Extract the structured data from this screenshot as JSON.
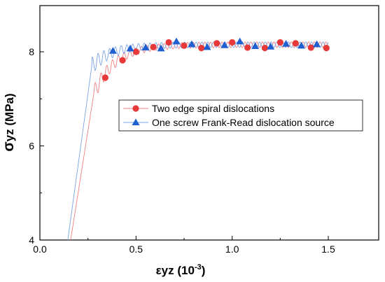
{
  "chart_data": {
    "type": "scatter",
    "xlabel": {
      "symbol": "ε",
      "sub": "yz",
      "unit_prefix": " (10",
      "exp": "-3",
      "unit_suffix": ")"
    },
    "ylabel": {
      "symbol": "σ",
      "sub": "yz",
      "unit": " (MPa)"
    },
    "xlim": [
      0.0,
      1.5
    ],
    "ylim": [
      4,
      9
    ],
    "x_ticks": [
      "0.0",
      "0.5",
      "1.0",
      "1.5"
    ],
    "y_ticks": [
      "4",
      "6",
      "8"
    ],
    "legend_position": "center-right",
    "series": [
      {
        "name": "Two edge spiral dislocations",
        "color": "#e8393a",
        "line_color": "#f08080",
        "marker": "circle",
        "points": [
          {
            "x": 0.34,
            "y": 7.45
          },
          {
            "x": 0.43,
            "y": 7.82
          },
          {
            "x": 0.5,
            "y": 8.0
          },
          {
            "x": 0.59,
            "y": 8.1
          },
          {
            "x": 0.67,
            "y": 8.2
          },
          {
            "x": 0.75,
            "y": 8.13
          },
          {
            "x": 0.84,
            "y": 8.08
          },
          {
            "x": 0.92,
            "y": 8.18
          },
          {
            "x": 1.0,
            "y": 8.2
          },
          {
            "x": 1.08,
            "y": 8.09
          },
          {
            "x": 1.17,
            "y": 8.08
          },
          {
            "x": 1.25,
            "y": 8.2
          },
          {
            "x": 1.33,
            "y": 8.18
          },
          {
            "x": 1.41,
            "y": 8.09
          },
          {
            "x": 1.49,
            "y": 8.08
          }
        ],
        "curve": {
          "x_start": 0.16,
          "y_start": 4.0,
          "x_knee": 0.28,
          "y_knee": 7.1,
          "plateau": 8.15,
          "x_end": 1.5
        }
      },
      {
        "name": "One screw Frank-Read dislocation source",
        "color": "#1f5fd1",
        "line_color": "#7aa3e6",
        "marker": "triangle",
        "points": [
          {
            "x": 0.38,
            "y": 8.02
          },
          {
            "x": 0.47,
            "y": 8.07
          },
          {
            "x": 0.55,
            "y": 8.09
          },
          {
            "x": 0.63,
            "y": 8.07
          },
          {
            "x": 0.71,
            "y": 8.22
          },
          {
            "x": 0.79,
            "y": 8.16
          },
          {
            "x": 0.87,
            "y": 8.1
          },
          {
            "x": 0.96,
            "y": 8.14
          },
          {
            "x": 1.04,
            "y": 8.22
          },
          {
            "x": 1.12,
            "y": 8.12
          },
          {
            "x": 1.2,
            "y": 8.11
          },
          {
            "x": 1.28,
            "y": 8.17
          },
          {
            "x": 1.36,
            "y": 8.13
          },
          {
            "x": 1.44,
            "y": 8.16
          }
        ],
        "curve": {
          "x_start": 0.145,
          "y_start": 4.0,
          "x_knee": 0.27,
          "y_knee": 7.7,
          "plateau": 8.15,
          "x_end": 1.5
        }
      }
    ]
  }
}
